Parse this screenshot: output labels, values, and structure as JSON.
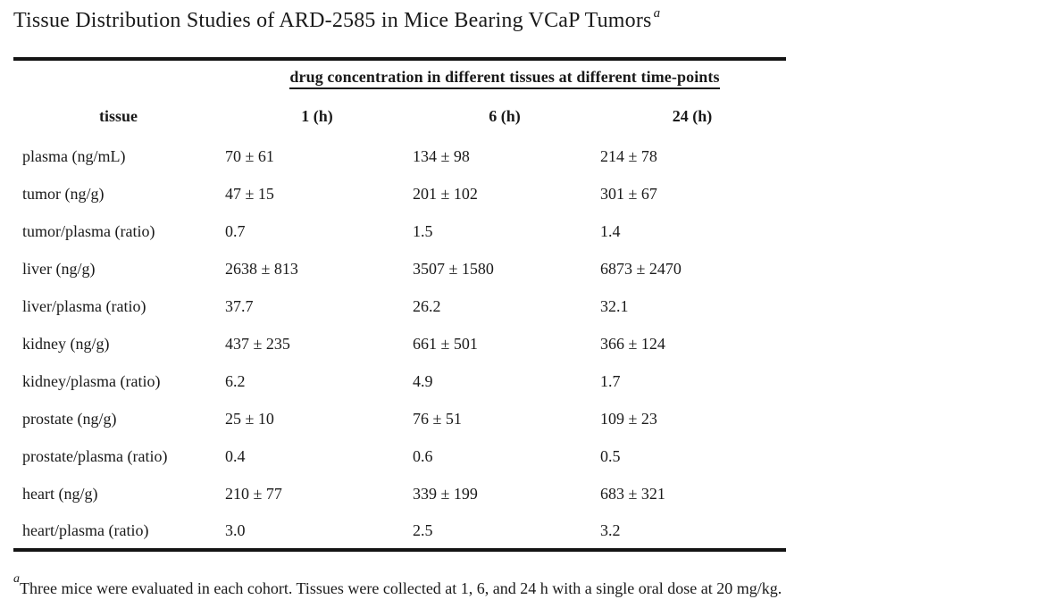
{
  "title": {
    "text": "Tissue Distribution Studies of ARD-2585 in Mice Bearing VCaP Tumors",
    "footnote_marker": "a"
  },
  "table": {
    "span_header": "drug concentration in different tissues at different time-points",
    "columns": [
      "tissue",
      "1 (h)",
      "6 (h)",
      "24 (h)"
    ],
    "rows": [
      {
        "tissue": "plasma (ng/mL)",
        "values": [
          "70 ± 61",
          "134 ± 98",
          "214 ± 78"
        ]
      },
      {
        "tissue": "tumor (ng/g)",
        "values": [
          "47 ± 15",
          "201 ± 102",
          "301 ± 67"
        ]
      },
      {
        "tissue": "tumor/plasma (ratio)",
        "values": [
          "0.7",
          "1.5",
          "1.4"
        ]
      },
      {
        "tissue": "liver (ng/g)",
        "values": [
          "2638 ± 813",
          "3507 ± 1580",
          "6873 ± 2470"
        ]
      },
      {
        "tissue": "liver/plasma (ratio)",
        "values": [
          "37.7",
          "26.2",
          "32.1"
        ]
      },
      {
        "tissue": "kidney (ng/g)",
        "values": [
          "437 ± 235",
          "661 ± 501",
          "366 ± 124"
        ]
      },
      {
        "tissue": "kidney/plasma (ratio)",
        "values": [
          "6.2",
          "4.9",
          "1.7"
        ]
      },
      {
        "tissue": "prostate (ng/g)",
        "values": [
          "25 ± 10",
          "76 ± 51",
          "109 ± 23"
        ]
      },
      {
        "tissue": "prostate/plasma (ratio)",
        "values": [
          "0.4",
          "0.6",
          "0.5"
        ]
      },
      {
        "tissue": "heart (ng/g)",
        "values": [
          "210 ± 77",
          "339 ± 199",
          "683 ± 321"
        ]
      },
      {
        "tissue": "heart/plasma (ratio)",
        "values": [
          "3.0",
          "2.5",
          "3.2"
        ]
      }
    ]
  },
  "footnote": {
    "marker": "a",
    "text": "Three mice were evaluated in each cohort. Tissues were collected at 1, 6, and 24 h with a single oral dose at 20 mg/kg."
  },
  "colors": {
    "text": "#1a1a1a",
    "rule": "#141414",
    "background": "#ffffff"
  }
}
